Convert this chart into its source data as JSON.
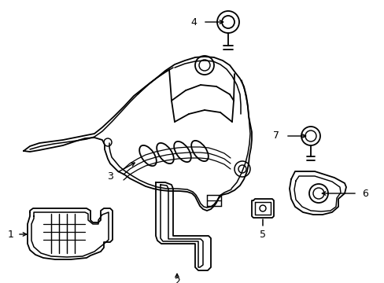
{
  "background_color": "#ffffff",
  "line_color": "#000000",
  "line_width": 1.3,
  "fig_width": 4.89,
  "fig_height": 3.6,
  "dpi": 100
}
